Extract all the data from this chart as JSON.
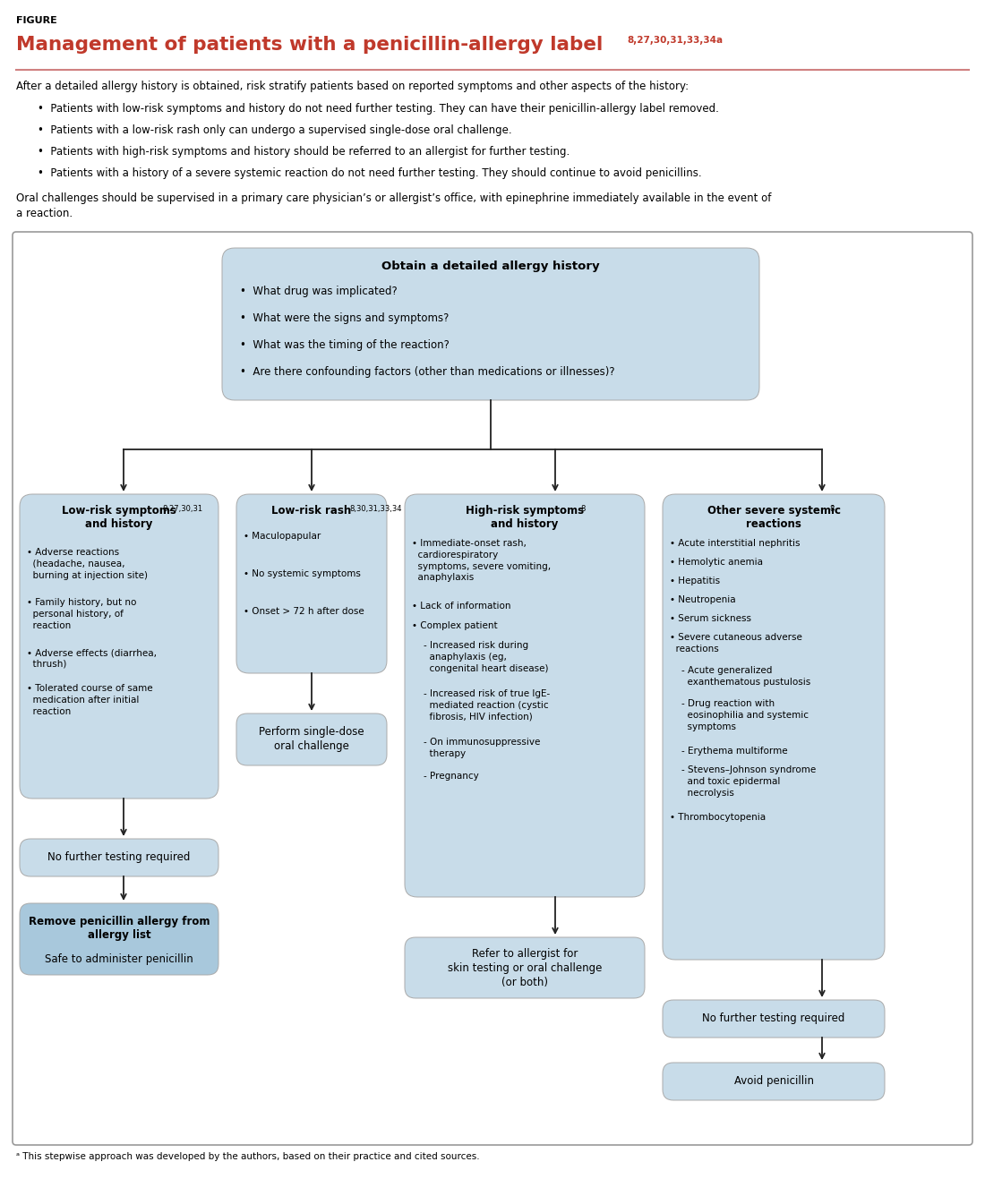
{
  "figure_label": "FIGURE",
  "title_main": "Management of patients with a penicillin-allergy label",
  "title_superscript": "8,27,30,31,33,34a",
  "title_color": "#C0392B",
  "separator_color": "#D4807A",
  "intro_text": "After a detailed allergy history is obtained, risk stratify patients based on reported symptoms and other aspects of the history:",
  "bullets_intro": [
    "Patients with low-risk symptoms and history do not need further testing. They can have their penicillin-allergy label removed.",
    "Patients with a low-risk rash only can undergo a supervised single-dose oral challenge.",
    "Patients with high-risk symptoms and history should be referred to an allergist for further testing.",
    "Patients with a history of a severe systemic reaction do not need further testing. They should continue to avoid penicillins."
  ],
  "closing_text_line1": "Oral challenges should be supervised in a primary care physician’s or allergist’s office, with epinephrine immediately available in the event of",
  "closing_text_line2": "a reaction.",
  "footnote": "ᵃ This stepwise approach was developed by the authors, based on their practice and cited sources.",
  "box_bg_light": "#C8DCE9",
  "box_bg_medium": "#A8C8DC",
  "box_border": "#888888",
  "arrow_color": "#222222",
  "top_box_title": "Obtain a detailed allergy history",
  "top_box_bullets": [
    "What drug was implicated?",
    "What were the signs and symptoms?",
    "What was the timing of the reaction?",
    "Are there confounding factors (other than medications or illnesses)?"
  ],
  "col1_title": "Low-risk symptoms\nand history",
  "col1_super": "8,27,30,31",
  "col1_bullets": [
    "• Adverse reactions\n  (headache, nausea,\n  burning at injection site)",
    "• Family history, but no\n  personal history, of\n  reaction",
    "• Adverse effects (diarrhea,\n  thrush)",
    "• Tolerated course of same\n  medication after initial\n  reaction"
  ],
  "col1_out1": "No further testing required",
  "col1_out2_bold": "Remove penicillin allergy from\nallergy list",
  "col1_out2_normal": "Safe to administer penicillin",
  "col2_title": "Low-risk rash",
  "col2_super": "8,30,31,33,34",
  "col2_bullets": [
    "• Maculopapular",
    "• No systemic symptoms",
    "• Onset > 72 h after dose"
  ],
  "col2_out1": "Perform single-dose\noral challenge",
  "col3_title": "High-risk symptoms\nand history",
  "col3_super": "8",
  "col3_bullets": [
    "• Immediate-onset rash,\n  cardiorespiratory\n  symptoms, severe vomiting,\n  anaphylaxis",
    "• Lack of information",
    "• Complex patient",
    "    - Increased risk during\n      anaphylaxis (eg,\n      congenital heart disease)",
    "    - Increased risk of true IgE-\n      mediated reaction (cystic\n      fibrosis, HIV infection)",
    "    - On immunosuppressive\n      therapy",
    "    - Pregnancy"
  ],
  "col3_out1": "Refer to allergist for\nskin testing or oral challenge\n(or both)",
  "col4_title": "Other severe systemic\nreactions",
  "col4_super": "8",
  "col4_bullets": [
    "• Acute interstitial nephritis",
    "• Hemolytic anemia",
    "• Hepatitis",
    "• Neutropenia",
    "• Serum sickness",
    "• Severe cutaneous adverse\n  reactions",
    "    - Acute generalized\n      exanthematous pustulosis",
    "    - Drug reaction with\n      eosinophilia and systemic\n      symptoms",
    "    - Erythema multiforme",
    "    - Stevens–Johnson syndrome\n      and toxic epidermal\n      necrolysis",
    "• Thrombocytopenia"
  ],
  "col4_out1": "No further testing required",
  "col4_out2": "Avoid penicillin"
}
